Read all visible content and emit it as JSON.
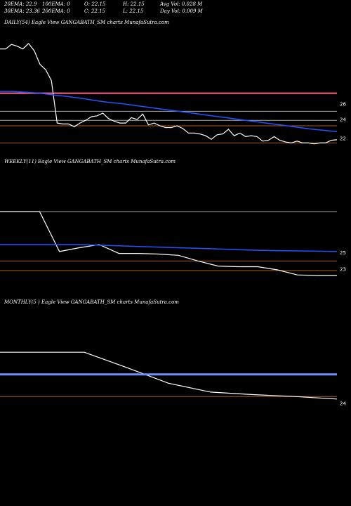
{
  "header": {
    "row1": {
      "ema20": "20EMA: 22.9",
      "ema100": "100EMA: 0",
      "open": "O: 22.15",
      "high": "H: 22.15",
      "avgvol": "Avg Vol: 0.028 M"
    },
    "row2": {
      "ema30": "30EMA: 23.36",
      "ema200": "200EMA: 0",
      "close": "C: 22.15",
      "low": "L: 22.15",
      "dayvol": "Day Vol: 0.009 M"
    }
  },
  "colors": {
    "background": "#000000",
    "price_line": "#ffffff",
    "ema_line": "#2255ff",
    "ema_line_light": "#6f8fff",
    "resistance": "#ff6688",
    "level_grey": "#aaaaaa",
    "level_orange": "#a65a1a"
  },
  "chart_data": [
    {
      "type": "line",
      "title": "DAILY(54) Eagle   View  GANGABATH_SM charts MunafaSutra.com",
      "y_ticks": [
        "26",
        "24",
        "22"
      ],
      "ylim": [
        20.9,
        34.5
      ],
      "series": [
        {
          "name": "",
          "kind": "price",
          "values": [
            32.2,
            32.2,
            32.7,
            32.5,
            32.2,
            32.8,
            32.0,
            30.5,
            29.9,
            28.7,
            24.0,
            23.9,
            23.9,
            23.6,
            24.0,
            24.3,
            24.7,
            24.8,
            25.1,
            24.5,
            24.2,
            24.0,
            24.0,
            24.6,
            24.4,
            25.0,
            23.8,
            24.0,
            23.7,
            23.5,
            23.5,
            23.7,
            23.4,
            22.9,
            22.9,
            22.8,
            22.6,
            22.2,
            22.7,
            22.8,
            23.3,
            22.6,
            22.9,
            22.5,
            22.6,
            22.5,
            22.0,
            22.1,
            22.5,
            22.1,
            21.9,
            21.8,
            22.0,
            21.8,
            21.8,
            21.7,
            21.8,
            21.8,
            22.1,
            22.15
          ]
        },
        {
          "name": "",
          "kind": "ema",
          "values": [
            27.5,
            27.5,
            27.4,
            27.3,
            27.1,
            26.95,
            26.75,
            26.5,
            26.3,
            26.15,
            25.95,
            25.75,
            25.55,
            25.35,
            25.15,
            24.95,
            24.75,
            24.55,
            24.35,
            24.15,
            23.95,
            23.75,
            23.55,
            23.35,
            23.2,
            23.05
          ]
        }
      ],
      "levels": [
        {
          "value": 27.3,
          "kind": "resistance"
        },
        {
          "value": 25.3,
          "kind": "grey"
        },
        {
          "value": 24.3,
          "kind": "grey"
        },
        {
          "value": 23.7,
          "kind": "orange"
        },
        {
          "value": 21.8,
          "kind": "orange"
        }
      ]
    },
    {
      "type": "line",
      "title": "WEEKLY(11) Eagle   View  GANGABATH_SM charts MunafaSutra.com",
      "y_ticks": [
        "25",
        "23"
      ],
      "ylim": [
        19.0,
        39.0
      ],
      "series": [
        {
          "name": "",
          "kind": "price",
          "values": [
            32.2,
            32.2,
            32.2,
            25.9,
            26.5,
            27.0,
            25.6,
            25.6,
            25.5,
            25.3,
            24.4,
            23.6,
            23.5,
            23.5,
            23.0,
            22.2,
            22.1,
            22.1
          ]
        },
        {
          "name": "",
          "kind": "ema",
          "values": [
            27.0,
            27.0,
            27.0,
            27.0,
            27.0,
            26.9,
            26.8,
            26.7,
            26.6,
            26.5,
            26.4,
            26.3,
            26.2,
            26.1,
            26.05,
            26.0,
            25.95,
            25.9
          ]
        }
      ],
      "levels": [
        {
          "value": 32.2,
          "kind": "grey"
        },
        {
          "value": 24.4,
          "kind": "orange"
        },
        {
          "value": 22.9,
          "kind": "orange"
        }
      ]
    },
    {
      "type": "line",
      "title": "MONTHLY(5              ) Eagle   View  GANGABATH_SM charts MunafaSutra.com",
      "y_ticks": [
        "24"
      ],
      "ylim": [
        19.0,
        39.0
      ],
      "series": [
        {
          "name": "",
          "kind": "price",
          "values": [
            32.2,
            32.2,
            32.2,
            29.8,
            27.3,
            25.9,
            25.5,
            25.2,
            24.8
          ]
        },
        {
          "name": "",
          "kind": "ema",
          "values": [
            28.7,
            28.7,
            28.7,
            28.7,
            28.7,
            28.7,
            28.7,
            28.7,
            28.7
          ]
        }
      ],
      "levels": [
        {
          "value": 25.2,
          "kind": "orange"
        }
      ]
    }
  ]
}
